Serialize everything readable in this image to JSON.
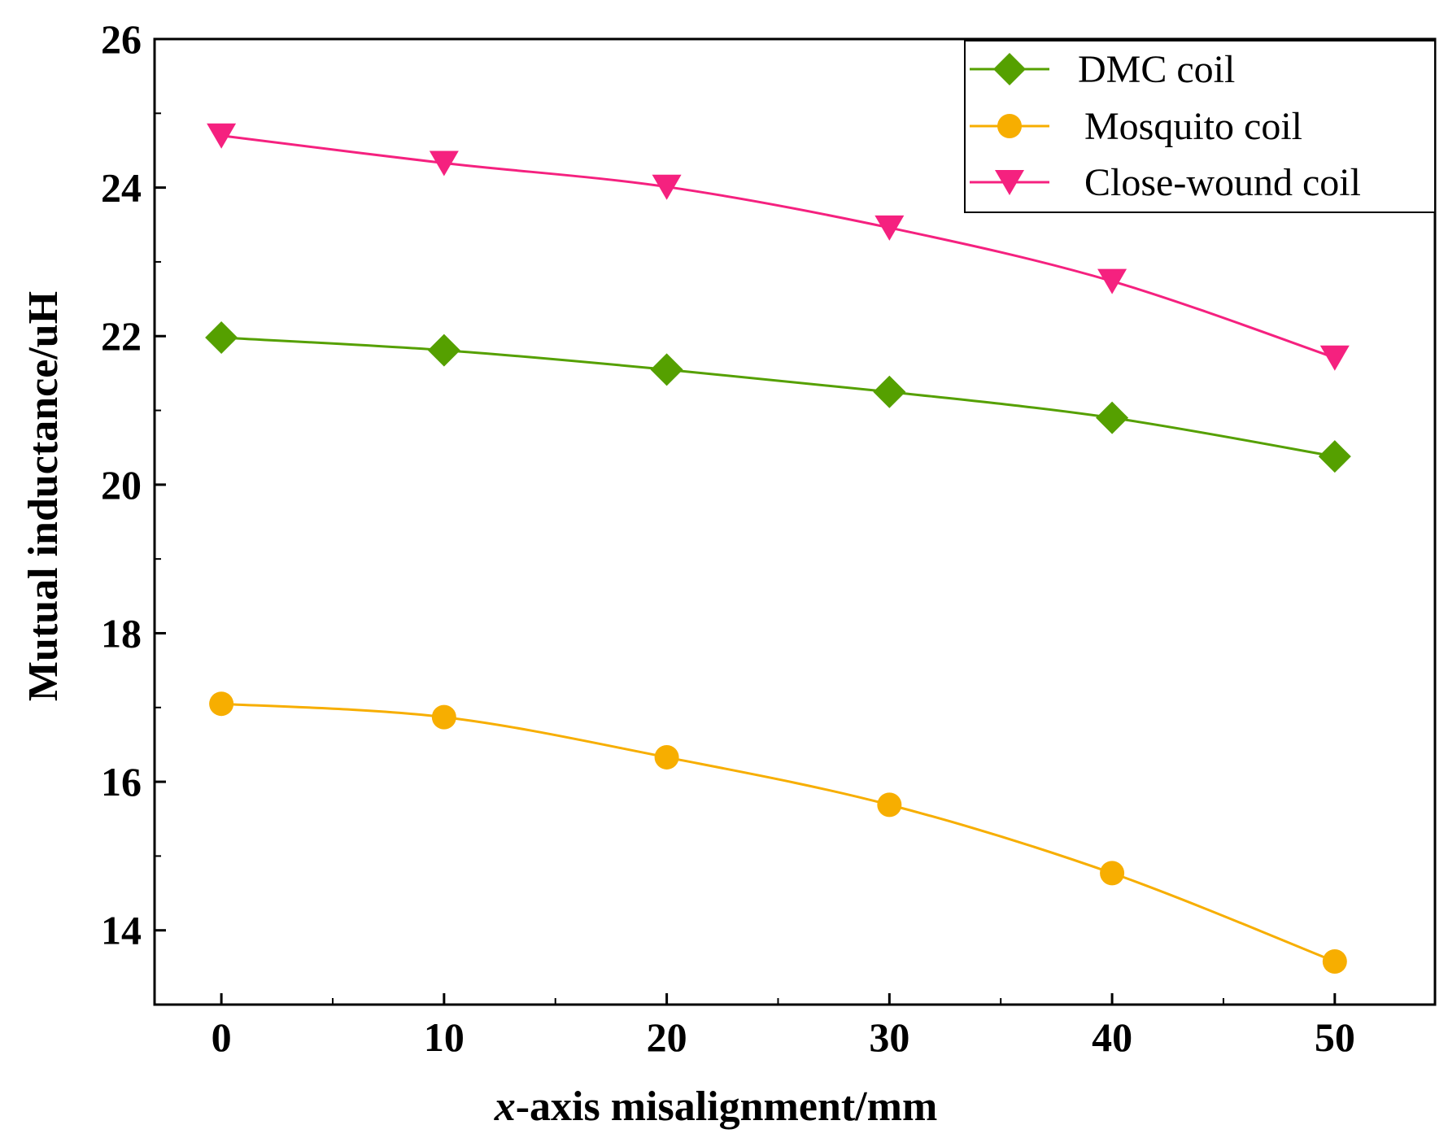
{
  "chart_data": {
    "type": "line",
    "title": "",
    "xlabel_italic": "x",
    "xlabel_rest": "-axis misalignment/mm",
    "ylabel": "Mutual inductance/uH",
    "x": [
      0,
      10,
      20,
      30,
      40,
      50
    ],
    "xlim": [
      -3,
      54.5
    ],
    "ylim": [
      13,
      26
    ],
    "xticks": [
      0,
      10,
      20,
      30,
      40,
      50
    ],
    "yticks": [
      14,
      16,
      18,
      20,
      22,
      24,
      26
    ],
    "legend_position": "top-right",
    "series": [
      {
        "name": "DMC coil",
        "color": "#55a000",
        "marker": "diamond",
        "values": [
          21.98,
          21.81,
          21.55,
          21.25,
          20.9,
          20.38
        ]
      },
      {
        "name": "Mosquito coil",
        "color": "#f7ae00",
        "marker": "circle",
        "values": [
          17.05,
          16.87,
          16.33,
          15.69,
          14.77,
          13.58
        ]
      },
      {
        "name": "Close-wound coil",
        "color": "#f5217f",
        "marker": "triangle-down",
        "values": [
          24.7,
          24.33,
          24.01,
          23.46,
          22.74,
          21.71
        ]
      }
    ]
  }
}
